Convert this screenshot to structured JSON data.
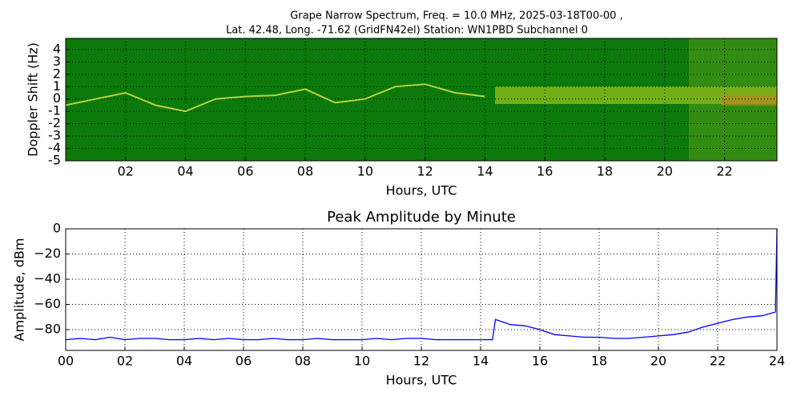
{
  "chart_data": [
    {
      "type": "heatmap",
      "title": "Grape Narrow Spectrum, Freq. = 10.0 MHz, 2025-03-18T00-00 ,",
      "subtitle": "Lat.  42.48, Long. -71.62 (GridFN42el) Station: WN1PBD Subchannel 0",
      "xlabel": "Hours, UTC",
      "ylabel": "Doppler Shift (Hz)",
      "xlim": [
        0,
        23.75
      ],
      "ylim": [
        -5,
        4.9
      ],
      "xticks": [
        {
          "value": 2,
          "label": "02"
        },
        {
          "value": 4,
          "label": "04"
        },
        {
          "value": 6,
          "label": "06"
        },
        {
          "value": 8,
          "label": "08"
        },
        10,
        12,
        14,
        16,
        18,
        20,
        22
      ],
      "yticks": [
        4,
        3,
        2,
        1,
        0,
        -1,
        -2,
        -3,
        -4,
        -5
      ],
      "grid": true,
      "color": "#e6e84a",
      "x": [
        0,
        1,
        2,
        3,
        4,
        5,
        6,
        7,
        8,
        9,
        10,
        11,
        12,
        13,
        14
      ],
      "values": [
        -0.5,
        0,
        0.5,
        -0.5,
        -1,
        0,
        0.2,
        0.3,
        0.8,
        -0.3,
        0,
        1,
        1.2,
        0.5,
        0.2
      ]
    },
    {
      "type": "line",
      "title": "Peak Amplitude by Minute",
      "xlabel": "Hours, UTC",
      "ylabel": "Amplitude, dBm",
      "xlim": [
        0,
        24
      ],
      "ylim": [
        -96.5,
        0
      ],
      "xticks": [
        {
          "value": 0,
          "label": "00"
        },
        {
          "value": 2,
          "label": "02"
        },
        {
          "value": 4,
          "label": "04"
        },
        {
          "value": 6,
          "label": "06"
        },
        {
          "value": 8,
          "label": "08"
        },
        10,
        12,
        14,
        16,
        18,
        20,
        22,
        24
      ],
      "yticks": [
        0,
        {
          "value": -20,
          "label": "−20"
        },
        {
          "value": -40,
          "label": "−40"
        },
        {
          "value": -60,
          "label": "−60"
        },
        {
          "value": -80,
          "label": "−80"
        }
      ],
      "grid": true,
      "color": "#0000ff",
      "x": [
        0,
        0.5,
        1,
        1.5,
        2,
        2.5,
        3,
        3.5,
        4,
        4.5,
        5,
        5.5,
        6,
        6.5,
        7,
        7.5,
        8,
        8.5,
        9,
        9.5,
        10,
        10.5,
        11,
        11.5,
        12,
        12.5,
        13,
        13.5,
        14,
        14.4,
        14.5,
        15,
        15.5,
        16,
        16.5,
        17,
        17.5,
        18,
        18.5,
        19,
        19.5,
        20,
        20.5,
        21,
        21.5,
        22,
        22.5,
        23,
        23.5,
        23.95,
        24
      ],
      "values": [
        -88,
        -87,
        -88,
        -86,
        -88,
        -87,
        -87,
        -88,
        -88,
        -87,
        -88,
        -87,
        -88,
        -88,
        -87,
        -88,
        -88,
        -87,
        -88,
        -88,
        -88,
        -87,
        -88,
        -87,
        -87,
        -88,
        -88,
        -88,
        -88,
        -88,
        -72,
        -76,
        -77,
        -80,
        -84,
        -85,
        -86,
        -86,
        -87,
        -87,
        -86,
        -85,
        -84,
        -82,
        -78,
        -75,
        -72,
        -70,
        -69,
        -66,
        0
      ]
    }
  ]
}
